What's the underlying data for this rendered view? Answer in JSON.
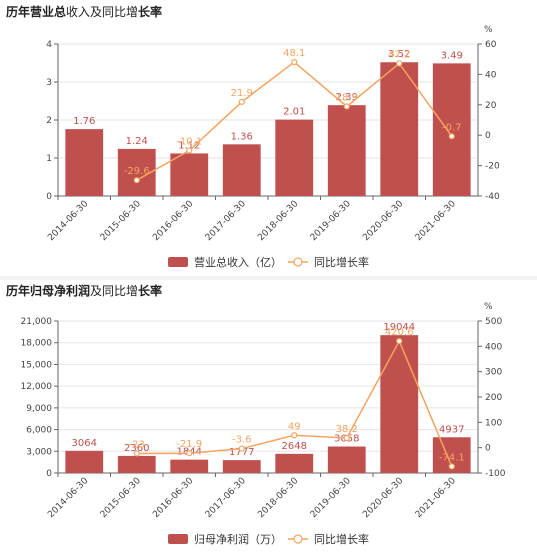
{
  "colors": {
    "bar": "#c0504d",
    "line": "#f4a460",
    "axis": "#666666",
    "grid": "#e6e6e6"
  },
  "chart_data": [
    {
      "type": "bar",
      "title_parts": [
        {
          "text": "历年营业总",
          "bold": true
        },
        {
          "text": "收入及同比增",
          "bold": false
        },
        {
          "text": "长率",
          "bold": true
        }
      ],
      "categories": [
        "2014-06-30",
        "2015-06-30",
        "2016-06-30",
        "2017-06-30",
        "2018-06-30",
        "2019-06-30",
        "2020-06-30",
        "2021-06-30"
      ],
      "series": [
        {
          "name": "营业总收入（亿）",
          "axis": "left",
          "kind": "bar",
          "values": [
            1.76,
            1.24,
            1.12,
            1.36,
            2.01,
            2.39,
            3.52,
            3.49
          ],
          "labels": [
            "1.76",
            "1.24",
            "1.12",
            "1.36",
            "2.01",
            "2.39",
            "3.52",
            "3.49"
          ]
        },
        {
          "name": "同比增长率",
          "axis": "right",
          "kind": "line",
          "values": [
            null,
            -29.6,
            -10.1,
            21.9,
            48.1,
            18.9,
            47.2,
            -0.7
          ],
          "labels": [
            "",
            "-29.6",
            "-10.1",
            "21.9",
            "48.1",
            "18.9",
            "47.2",
            "-0.7"
          ]
        }
      ],
      "y_left": {
        "ticks": [
          0,
          1,
          2,
          3,
          4
        ],
        "ylim": [
          0,
          4
        ]
      },
      "y_right": {
        "ticks": [
          -40,
          -20,
          0,
          20,
          40,
          60
        ],
        "ylim": [
          -40,
          60
        ],
        "unit": "%"
      },
      "legend": "bottom-center"
    },
    {
      "type": "bar",
      "title_parts": [
        {
          "text": "历年归母净利润",
          "bold": true
        },
        {
          "text": "及同比增",
          "bold": false
        },
        {
          "text": "长率",
          "bold": true
        }
      ],
      "categories": [
        "2014-06-30",
        "2015-06-30",
        "2016-06-30",
        "2017-06-30",
        "2018-06-30",
        "2019-06-30",
        "2020-06-30",
        "2021-06-30"
      ],
      "series": [
        {
          "name": "归母净利润（万）",
          "axis": "left",
          "kind": "bar",
          "values": [
            3064,
            2360,
            1844,
            1777,
            2648,
            3658,
            19044,
            4937
          ],
          "labels": [
            "3064",
            "2360",
            "1844",
            "1777",
            "2648",
            "3658",
            "19044",
            "4937"
          ]
        },
        {
          "name": "同比增长率",
          "axis": "right",
          "kind": "line",
          "values": [
            null,
            -23,
            -21.9,
            -3.6,
            49,
            38.2,
            420.6,
            -74.1
          ],
          "labels": [
            "",
            "-23",
            "-21.9",
            "-3.6",
            "49",
            "38.2",
            "420.6",
            "-74.1"
          ]
        }
      ],
      "y_left": {
        "ticks": [
          0,
          3000,
          6000,
          9000,
          12000,
          15000,
          18000,
          21000
        ],
        "ylim": [
          0,
          21000
        ],
        "tick_labels": [
          "0",
          "3,000",
          "6,000",
          "9,000",
          "12,000",
          "15,000",
          "18,000",
          "21,000"
        ]
      },
      "y_right": {
        "ticks": [
          -100,
          0,
          100,
          200,
          300,
          400,
          500
        ],
        "ylim": [
          -100,
          500
        ],
        "unit": "%"
      },
      "legend": "bottom-center"
    }
  ]
}
